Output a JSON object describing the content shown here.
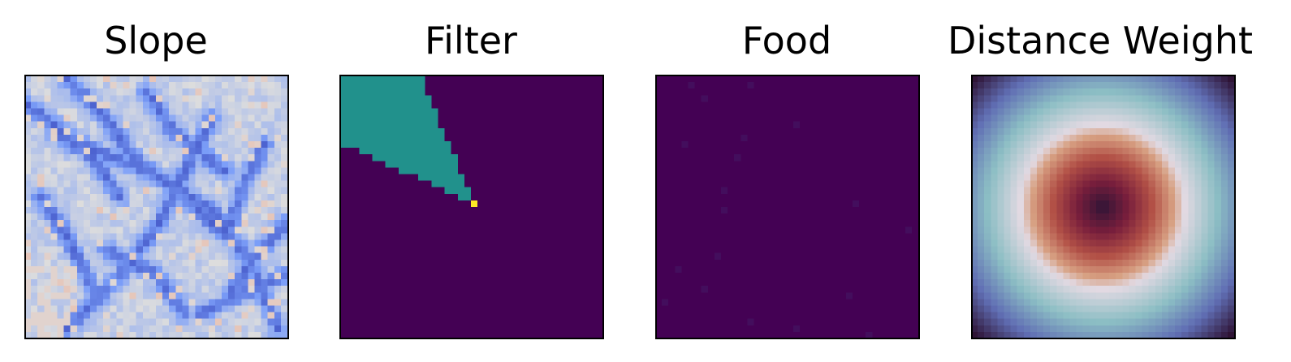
{
  "chart_data": [
    {
      "type": "heatmap",
      "title": "Slope",
      "grid_size": [
        40,
        40
      ],
      "colormap": "coolwarm",
      "axes_ticks": "none",
      "description_values": "continuous slope field, mostly light blue with dark blue ridge lines and a few light orange cells"
    },
    {
      "type": "heatmap",
      "title": "Filter",
      "grid_size": [
        40,
        40
      ],
      "colormap": "viridis",
      "axes_ticks": "none",
      "levels": [
        0,
        0.5,
        1
      ],
      "agent_cell": [
        19,
        20
      ],
      "cone_apex": [
        19,
        20
      ],
      "cone_top_cols": [
        0,
        12
      ],
      "cone_left_rows": [
        0,
        10
      ]
    },
    {
      "type": "heatmap",
      "title": "Food",
      "grid_size": [
        40,
        40
      ],
      "colormap": "viridis",
      "axes_ticks": "none",
      "background_value": 0,
      "food_cells": [
        [
          1,
          5
        ],
        [
          1,
          14
        ],
        [
          3,
          7
        ],
        [
          7,
          21
        ],
        [
          9,
          13
        ],
        [
          10,
          4
        ],
        [
          12,
          12
        ],
        [
          17,
          10
        ],
        [
          19,
          30
        ],
        [
          20,
          10
        ],
        [
          23,
          38
        ],
        [
          27,
          9
        ],
        [
          29,
          3
        ],
        [
          32,
          7
        ],
        [
          33,
          29
        ],
        [
          34,
          1
        ],
        [
          37,
          14
        ],
        [
          38,
          21
        ],
        [
          39,
          32
        ]
      ]
    },
    {
      "type": "heatmap",
      "title": "Distance Weight",
      "grid_size": [
        40,
        40
      ],
      "colormap": "twilight_shifted",
      "axes_ticks": "none",
      "center": [
        19.5,
        19.5
      ],
      "ring_radius": 12.5,
      "max_radius": 22
    }
  ]
}
